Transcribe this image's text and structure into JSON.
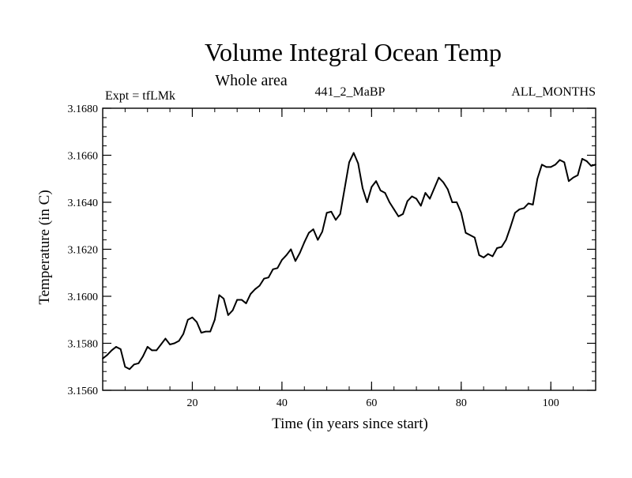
{
  "chart_data": {
    "type": "line",
    "title": "Volume Integral Ocean Temp",
    "subtitle": "Whole area",
    "annotations": {
      "left": "Expt = tfLMk",
      "center": "441_2_MaBP",
      "right": "ALL_MONTHS"
    },
    "xlabel": "Time (in years since start)",
    "ylabel": "Temperature (in C)",
    "xlim": [
      0,
      110
    ],
    "ylim": [
      3.156,
      3.168
    ],
    "xticks": [
      20,
      40,
      60,
      80,
      100
    ],
    "xtick_labels": [
      "20",
      "40",
      "60",
      "80",
      "100"
    ],
    "yticks": [
      3.156,
      3.158,
      3.16,
      3.162,
      3.164,
      3.166,
      3.168
    ],
    "ytick_labels": [
      "3.1560",
      "3.1580",
      "3.1600",
      "3.1620",
      "3.1640",
      "3.1660",
      "3.1680"
    ],
    "grid": false,
    "series": [
      {
        "name": "Volume integral ocean temperature",
        "color": "#000000",
        "x": [
          0,
          1,
          2,
          3,
          4,
          5,
          6,
          7,
          8,
          9,
          10,
          11,
          12,
          13,
          14,
          15,
          16,
          17,
          18,
          19,
          20,
          21,
          22,
          23,
          24,
          25,
          26,
          27,
          28,
          29,
          30,
          31,
          32,
          33,
          34,
          35,
          36,
          37,
          38,
          39,
          40,
          41,
          42,
          43,
          44,
          45,
          46,
          47,
          48,
          49,
          50,
          51,
          52,
          53,
          54,
          55,
          56,
          57,
          58,
          59,
          60,
          61,
          62,
          63,
          64,
          65,
          66,
          67,
          68,
          69,
          70,
          71,
          72,
          73,
          74,
          75,
          76,
          77,
          78,
          79,
          80,
          81,
          82,
          83,
          84,
          85,
          86,
          87,
          88,
          89,
          90,
          91,
          92,
          93,
          94,
          95,
          96,
          97,
          98,
          99,
          100,
          101,
          102,
          103,
          104,
          105,
          106,
          107,
          108,
          109,
          110
        ],
        "values": [
          3.15735,
          3.1575,
          3.1577,
          3.15785,
          3.15775,
          3.157,
          3.1569,
          3.1571,
          3.15715,
          3.15745,
          3.15785,
          3.1577,
          3.1577,
          3.15795,
          3.1582,
          3.15795,
          3.158,
          3.1581,
          3.1584,
          3.159,
          3.1591,
          3.1589,
          3.15845,
          3.1585,
          3.1585,
          3.159,
          3.16005,
          3.1599,
          3.1592,
          3.1594,
          3.15985,
          3.15985,
          3.1597,
          3.1601,
          3.1603,
          3.16045,
          3.16075,
          3.1608,
          3.16115,
          3.1612,
          3.16155,
          3.16175,
          3.162,
          3.1615,
          3.16185,
          3.1623,
          3.1627,
          3.16285,
          3.1624,
          3.16275,
          3.16355,
          3.1636,
          3.16325,
          3.1635,
          3.1646,
          3.1657,
          3.1661,
          3.16565,
          3.1646,
          3.164,
          3.16465,
          3.1649,
          3.1645,
          3.1644,
          3.164,
          3.1637,
          3.1634,
          3.1635,
          3.16405,
          3.16425,
          3.16415,
          3.16385,
          3.1644,
          3.16415,
          3.1646,
          3.16505,
          3.16485,
          3.16455,
          3.164,
          3.164,
          3.16355,
          3.1627,
          3.1626,
          3.1625,
          3.16175,
          3.16165,
          3.1618,
          3.1617,
          3.16205,
          3.1621,
          3.1624,
          3.16295,
          3.16355,
          3.1637,
          3.16375,
          3.16395,
          3.1639,
          3.165,
          3.1656,
          3.1655,
          3.1655,
          3.1656,
          3.1658,
          3.1657,
          3.1649,
          3.16505,
          3.16515,
          3.16585,
          3.16575,
          3.16555,
          3.1656
        ]
      }
    ]
  }
}
